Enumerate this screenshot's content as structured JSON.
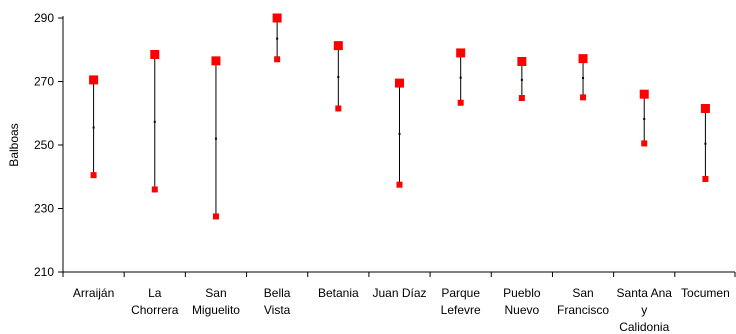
{
  "chart_data": {
    "type": "range",
    "title": "",
    "ylabel": "Balboas",
    "xlabel": "",
    "ylim": [
      210,
      290
    ],
    "yticks": [
      210,
      230,
      250,
      270,
      290
    ],
    "grid": false,
    "legend": "none",
    "colors": {
      "marker": "#ff0000",
      "line": "#000000",
      "axis": "#000000"
    },
    "categories": [
      {
        "label_lines": [
          "Arraiján"
        ],
        "high": 270.5,
        "low": 240.5,
        "mid": 255.5
      },
      {
        "label_lines": [
          "La",
          "Chorrera"
        ],
        "high": 278.5,
        "low": 236,
        "mid": 257.3
      },
      {
        "label_lines": [
          "San",
          "Miguelito"
        ],
        "high": 276.5,
        "low": 227.5,
        "mid": 252
      },
      {
        "label_lines": [
          "Bella",
          "Vista"
        ],
        "high": 290,
        "low": 277,
        "mid": 283.5
      },
      {
        "label_lines": [
          "Betania"
        ],
        "high": 281.3,
        "low": 261.5,
        "mid": 271.4
      },
      {
        "label_lines": [
          "Juan Díaz"
        ],
        "high": 269.5,
        "low": 237.5,
        "mid": 253.5
      },
      {
        "label_lines": [
          "Parque",
          "Lefevre"
        ],
        "high": 279,
        "low": 263.3,
        "mid": 271.2
      },
      {
        "label_lines": [
          "Pueblo",
          "Nuevo"
        ],
        "high": 276.3,
        "low": 264.8,
        "mid": 270.5
      },
      {
        "label_lines": [
          "San",
          "Francisco"
        ],
        "high": 277.2,
        "low": 265,
        "mid": 271.1
      },
      {
        "label_lines": [
          "Santa Ana",
          "y",
          "Calidonia"
        ],
        "high": 266,
        "low": 250.5,
        "mid": 258.2
      },
      {
        "label_lines": [
          "Tocumen"
        ],
        "high": 261.5,
        "low": 239.3,
        "mid": 250.4
      }
    ]
  }
}
